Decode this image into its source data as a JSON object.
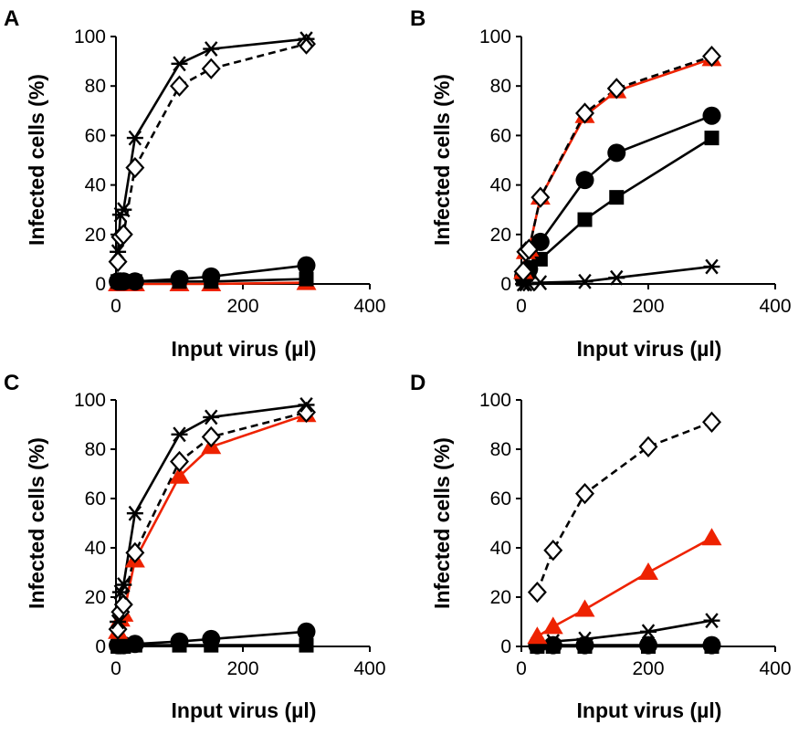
{
  "colors": {
    "red": "#ee2200",
    "black": "#000000"
  },
  "chart_data": [
    {
      "type": "line",
      "panel_label": "A",
      "xlabel": "Input virus (µl)",
      "ylabel": "Infected cells (%)",
      "xlim": [
        0,
        400
      ],
      "ylim": [
        0,
        100
      ],
      "xticks": [
        0,
        200,
        400
      ],
      "yticks": [
        0,
        20,
        40,
        60,
        80,
        100
      ],
      "series": [
        {
          "marker": "asterisk",
          "line": "solid",
          "color": "#000000",
          "x": [
            3,
            7,
            12,
            30,
            100,
            150,
            300
          ],
          "y": [
            13,
            28,
            30,
            59,
            89,
            95,
            99
          ]
        },
        {
          "marker": "open-diamond",
          "line": "dashed",
          "color": "#000000",
          "x": [
            3,
            7,
            12,
            30,
            100,
            150,
            300
          ],
          "y": [
            9,
            19,
            20,
            47,
            80,
            87,
            97
          ]
        },
        {
          "marker": "filled-circle",
          "line": "solid",
          "color": "#000000",
          "x": [
            3,
            7,
            12,
            30,
            100,
            150,
            300
          ],
          "y": [
            1,
            1,
            1,
            1,
            2,
            3,
            7.5
          ]
        },
        {
          "marker": "filled-square",
          "line": "solid",
          "color": "#000000",
          "x": [
            3,
            7,
            12,
            30,
            100,
            150,
            300
          ],
          "y": [
            1,
            1,
            1,
            1,
            1,
            1,
            2
          ]
        },
        {
          "marker": "filled-triangle",
          "line": "solid",
          "color": "#ee2200",
          "x": [
            3,
            7,
            12,
            30,
            100,
            150,
            300
          ],
          "y": [
            0,
            0,
            0,
            0,
            0,
            0,
            0.5
          ]
        }
      ]
    },
    {
      "type": "line",
      "panel_label": "B",
      "xlabel": "Input virus (µl)",
      "ylabel": "Infected cells (%)",
      "xlim": [
        0,
        400
      ],
      "ylim": [
        0,
        100
      ],
      "xticks": [
        0,
        200,
        400
      ],
      "yticks": [
        0,
        20,
        40,
        60,
        80,
        100
      ],
      "series": [
        {
          "marker": "open-diamond",
          "line": "dashed",
          "color": "#000000",
          "x": [
            3,
            7,
            12,
            30,
            100,
            150,
            300
          ],
          "y": [
            5,
            13,
            14,
            35,
            69,
            79,
            92
          ]
        },
        {
          "marker": "filled-triangle",
          "line": "solid",
          "color": "#ee2200",
          "x": [
            3,
            7,
            12,
            30,
            100,
            150,
            300
          ],
          "y": [
            5,
            13,
            14,
            35,
            68,
            78,
            91
          ]
        },
        {
          "marker": "filled-circle",
          "line": "solid",
          "color": "#000000",
          "x": [
            3,
            7,
            12,
            30,
            100,
            150,
            300
          ],
          "y": [
            3,
            5,
            6,
            17,
            42,
            53,
            68
          ]
        },
        {
          "marker": "filled-square",
          "line": "solid",
          "color": "#000000",
          "x": [
            3,
            7,
            12,
            30,
            100,
            150,
            300
          ],
          "y": [
            2,
            4,
            5,
            10,
            26,
            35,
            59
          ]
        },
        {
          "marker": "asterisk",
          "line": "solid",
          "color": "#000000",
          "x": [
            3,
            7,
            12,
            30,
            100,
            150,
            300
          ],
          "y": [
            0,
            0,
            0,
            0.5,
            1,
            2.5,
            7
          ]
        }
      ]
    },
    {
      "type": "line",
      "panel_label": "C",
      "xlabel": "Input virus (µl)",
      "ylabel": "Infected cells (%)",
      "xlim": [
        0,
        400
      ],
      "ylim": [
        0,
        100
      ],
      "xticks": [
        0,
        200,
        400
      ],
      "yticks": [
        0,
        20,
        40,
        60,
        80,
        100
      ],
      "series": [
        {
          "marker": "asterisk",
          "line": "solid",
          "color": "#000000",
          "x": [
            3,
            7,
            12,
            30,
            100,
            150,
            300
          ],
          "y": [
            10,
            22,
            25,
            54,
            86,
            93,
            98
          ]
        },
        {
          "marker": "open-diamond",
          "line": "dashed",
          "color": "#000000",
          "x": [
            3,
            7,
            12,
            30,
            100,
            150,
            300
          ],
          "y": [
            7,
            14,
            17,
            38,
            75,
            85,
            95
          ]
        },
        {
          "marker": "filled-triangle",
          "line": "solid",
          "color": "#ee2200",
          "x": [
            3,
            7,
            12,
            30,
            100,
            150,
            300
          ],
          "y": [
            6,
            11,
            13,
            35,
            69,
            81,
            94
          ]
        },
        {
          "marker": "filled-circle",
          "line": "solid",
          "color": "#000000",
          "x": [
            3,
            7,
            12,
            30,
            100,
            150,
            300
          ],
          "y": [
            0.5,
            0.5,
            0.5,
            1,
            2,
            3,
            6
          ]
        },
        {
          "marker": "filled-square",
          "line": "solid",
          "color": "#000000",
          "x": [
            3,
            7,
            12,
            30,
            100,
            150,
            300
          ],
          "y": [
            0,
            0,
            0,
            0.5,
            0.5,
            0.5,
            0.5
          ]
        }
      ]
    },
    {
      "type": "line",
      "panel_label": "D",
      "xlabel": "Input virus (µl)",
      "ylabel": "Infected cells (%)",
      "xlim": [
        0,
        400
      ],
      "ylim": [
        0,
        100
      ],
      "xticks": [
        0,
        200,
        400
      ],
      "yticks": [
        0,
        20,
        40,
        60,
        80,
        100
      ],
      "series": [
        {
          "marker": "open-diamond",
          "line": "dashed",
          "color": "#000000",
          "x": [
            25,
            50,
            100,
            200,
            300
          ],
          "y": [
            22,
            39,
            62,
            81,
            91
          ]
        },
        {
          "marker": "filled-triangle",
          "line": "solid",
          "color": "#ee2200",
          "x": [
            25,
            50,
            100,
            200,
            300
          ],
          "y": [
            4,
            8,
            15,
            30,
            44
          ]
        },
        {
          "marker": "asterisk",
          "line": "solid",
          "color": "#000000",
          "x": [
            25,
            50,
            100,
            200,
            300
          ],
          "y": [
            1,
            2,
            3,
            6,
            10.5
          ]
        },
        {
          "marker": "filled-circle",
          "line": "solid",
          "color": "#000000",
          "x": [
            25,
            50,
            100,
            200,
            300
          ],
          "y": [
            0.5,
            0.5,
            0.5,
            0.5,
            0.5
          ]
        },
        {
          "marker": "filled-square",
          "line": "solid",
          "color": "#000000",
          "x": [
            25,
            50,
            100,
            200,
            300
          ],
          "y": [
            0,
            0,
            0,
            0,
            0
          ]
        }
      ]
    }
  ]
}
